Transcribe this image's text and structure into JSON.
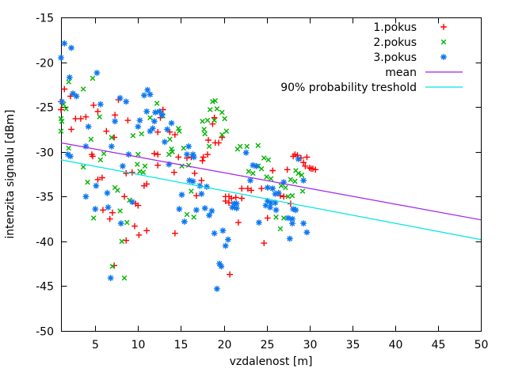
{
  "chart_data": {
    "type": "scatter",
    "title": "",
    "xlabel": "vzdalenost [m]",
    "ylabel": "intenzita signalu [dBm]",
    "xlim": [
      1,
      50
    ],
    "ylim": [
      -50,
      -15
    ],
    "xticks": [
      5,
      10,
      15,
      20,
      25,
      30,
      35,
      40,
      45,
      50
    ],
    "yticks": [
      -50,
      -45,
      -40,
      -35,
      -30,
      -25,
      -20,
      -15
    ],
    "grid": false,
    "background": "#ffffff",
    "axis_color": "#000000",
    "legend_position": "top-right-inside",
    "series": [
      {
        "name": "1.pokus",
        "type": "scatter",
        "marker": "plus",
        "color": "#ff0000",
        "points": [
          [
            1.4,
            -23.0
          ],
          [
            2.1,
            -23.8
          ],
          [
            1.0,
            -24.4
          ],
          [
            1.0,
            -25.3
          ],
          [
            2.2,
            -27.5
          ],
          [
            2.7,
            -26.3
          ],
          [
            3.3,
            -26.3
          ],
          [
            3.9,
            -26.1
          ],
          [
            4.8,
            -24.8
          ],
          [
            5.3,
            -25.5
          ],
          [
            7.7,
            -24.2
          ],
          [
            7.3,
            -25.9
          ],
          [
            8.8,
            -26.5
          ],
          [
            6.3,
            -27.7
          ],
          [
            7.2,
            -28.4
          ],
          [
            4.6,
            -30.3
          ],
          [
            4.7,
            -30.5
          ],
          [
            5.8,
            -32.9
          ],
          [
            5.3,
            -33.1
          ],
          [
            8.6,
            -32.4
          ],
          [
            9.3,
            -32.3
          ],
          [
            10.7,
            -33.8
          ],
          [
            11.0,
            -33.6
          ],
          [
            8.4,
            -35.0
          ],
          [
            9.7,
            -35.8
          ],
          [
            10.0,
            -36.0
          ],
          [
            5.9,
            -36.5
          ],
          [
            7.0,
            -36.8
          ],
          [
            6.7,
            -37.5
          ],
          [
            9.6,
            -38.3
          ],
          [
            11.0,
            -38.8
          ],
          [
            10.1,
            -39.3
          ],
          [
            8.6,
            -39.9
          ],
          [
            7.2,
            -42.7
          ],
          [
            12.9,
            -25.3
          ],
          [
            12.6,
            -26.2
          ],
          [
            12.3,
            -27.8
          ],
          [
            13.7,
            -27.8
          ],
          [
            14.3,
            -28.1
          ],
          [
            11.9,
            -30.2
          ],
          [
            12.3,
            -30.3
          ],
          [
            14.7,
            -30.6
          ],
          [
            12.3,
            -31.5
          ],
          [
            14.2,
            -32.3
          ],
          [
            17.4,
            -33.2
          ],
          [
            16.6,
            -32.4
          ],
          [
            15.7,
            -30.7
          ],
          [
            16.2,
            -30.6
          ],
          [
            17.5,
            -31.0
          ],
          [
            17.6,
            -30.6
          ],
          [
            18.1,
            -30.3
          ],
          [
            18.9,
            -26.2
          ],
          [
            18.7,
            -26.9
          ],
          [
            18.2,
            -28.7
          ],
          [
            19.0,
            -29.0
          ],
          [
            19.4,
            -29.0
          ],
          [
            19.8,
            -28.4
          ],
          [
            16.8,
            -34.9
          ],
          [
            20.2,
            -35.0
          ],
          [
            20.6,
            -35.0
          ],
          [
            20.9,
            -35.2
          ],
          [
            21.4,
            -35.1
          ],
          [
            20.2,
            -35.5
          ],
          [
            20.6,
            -35.7
          ],
          [
            21.7,
            -37.9
          ],
          [
            14.3,
            -39.1
          ],
          [
            20.7,
            -43.7
          ],
          [
            22.1,
            -34.1
          ],
          [
            22.8,
            -34.1
          ],
          [
            23.2,
            -34.3
          ],
          [
            24.4,
            -34.1
          ],
          [
            22.1,
            -35.2
          ],
          [
            25.7,
            -32.1
          ],
          [
            27.4,
            -32.0
          ],
          [
            26.6,
            -34.9
          ],
          [
            27.0,
            -35.0
          ],
          [
            27.8,
            -35.8
          ],
          [
            25.1,
            -37.4
          ],
          [
            24.7,
            -40.2
          ],
          [
            28.1,
            -30.5
          ],
          [
            28.6,
            -30.4
          ],
          [
            29.0,
            -30.7
          ],
          [
            28.3,
            -30.3
          ],
          [
            29.7,
            -30.6
          ],
          [
            29.3,
            -31.2
          ],
          [
            29.5,
            -31.6
          ],
          [
            30.0,
            -31.8
          ],
          [
            30.2,
            -31.9
          ],
          [
            30.4,
            -31.9
          ],
          [
            30.7,
            -32.0
          ]
        ]
      },
      {
        "name": "2.pokus",
        "type": "scatter",
        "marker": "cross",
        "color": "#00b400",
        "points": [
          [
            1.9,
            -22.2
          ],
          [
            4.7,
            -21.8
          ],
          [
            3.6,
            -23.0
          ],
          [
            1.3,
            -24.7
          ],
          [
            1.6,
            -25.2
          ],
          [
            1.0,
            -26.3
          ],
          [
            1.1,
            -26.6
          ],
          [
            5.5,
            -26.1
          ],
          [
            1.0,
            -27.7
          ],
          [
            6.9,
            -28.4
          ],
          [
            4.5,
            -28.6
          ],
          [
            9.4,
            -28.2
          ],
          [
            10.4,
            -28.0
          ],
          [
            1.9,
            -29.6
          ],
          [
            6.0,
            -30.2
          ],
          [
            10.0,
            -30.3
          ],
          [
            5.6,
            -30.9
          ],
          [
            3.6,
            -31.7
          ],
          [
            9.9,
            -31.4
          ],
          [
            10.8,
            -31.6
          ],
          [
            10.2,
            -32.2
          ],
          [
            10.6,
            -32.3
          ],
          [
            4.1,
            -33.4
          ],
          [
            7.3,
            -34.0
          ],
          [
            7.6,
            -34.3
          ],
          [
            9.0,
            -35.4
          ],
          [
            7.9,
            -36.6
          ],
          [
            4.8,
            -37.4
          ],
          [
            8.7,
            -37.9
          ],
          [
            8.1,
            -40.0
          ],
          [
            7.0,
            -42.8
          ],
          [
            8.4,
            -44.1
          ],
          [
            12.2,
            -24.6
          ],
          [
            11.4,
            -26.2
          ],
          [
            12.9,
            -26.0
          ],
          [
            14.7,
            -27.4
          ],
          [
            14.8,
            -27.7
          ],
          [
            13.7,
            -28.6
          ],
          [
            14.0,
            -30.0
          ],
          [
            13.6,
            -30.3
          ],
          [
            15.3,
            -29.6
          ],
          [
            13.9,
            -29.7
          ],
          [
            15.1,
            -31.6
          ],
          [
            15.9,
            -31.5
          ],
          [
            16.2,
            -34.4
          ],
          [
            15.7,
            -37.0
          ],
          [
            16.5,
            -37.3
          ],
          [
            18.7,
            -24.4
          ],
          [
            19.0,
            -24.3
          ],
          [
            18.4,
            -25.3
          ],
          [
            19.2,
            -25.2
          ],
          [
            19.8,
            -25.6
          ],
          [
            17.5,
            -26.6
          ],
          [
            18.1,
            -26.5
          ],
          [
            18.9,
            -26.5
          ],
          [
            20.1,
            -26.3
          ],
          [
            17.7,
            -27.5
          ],
          [
            17.8,
            -28.0
          ],
          [
            20.3,
            -27.7
          ],
          [
            19.8,
            -28.1
          ],
          [
            18.3,
            -29.4
          ],
          [
            21.9,
            -29.4
          ],
          [
            21.6,
            -29.7
          ],
          [
            22.7,
            -29.4
          ],
          [
            24.0,
            -29.3
          ],
          [
            24.7,
            -30.7
          ],
          [
            25.2,
            -30.9
          ],
          [
            24.0,
            -31.6
          ],
          [
            24.4,
            -31.9
          ],
          [
            22.9,
            -32.2
          ],
          [
            23.4,
            -32.4
          ],
          [
            25.0,
            -32.8
          ],
          [
            25.5,
            -33.0
          ],
          [
            26.7,
            -33.8
          ],
          [
            27.2,
            -34.0
          ],
          [
            27.8,
            -33.1
          ],
          [
            28.3,
            -33.3
          ],
          [
            28.7,
            -32.4
          ],
          [
            29.1,
            -32.6
          ],
          [
            28.4,
            -32.1
          ],
          [
            29.2,
            -34.4
          ],
          [
            27.5,
            -35.0
          ],
          [
            28.0,
            -34.9
          ],
          [
            26.1,
            -37.3
          ],
          [
            26.6,
            -38.6
          ],
          [
            27.0,
            -37.4
          ]
        ]
      },
      {
        "name": "3.pokus",
        "type": "scatter",
        "marker": "asterisk",
        "color": "#0d78f0",
        "points": [
          [
            1.4,
            -17.9
          ],
          [
            2.2,
            -18.4
          ],
          [
            1.0,
            -19.5
          ],
          [
            2.0,
            -21.7
          ],
          [
            5.2,
            -21.2
          ],
          [
            2.4,
            -23.5
          ],
          [
            2.8,
            -23.8
          ],
          [
            1.1,
            -24.4
          ],
          [
            7.9,
            -24.0
          ],
          [
            8.6,
            -24.4
          ],
          [
            10.7,
            -23.7
          ],
          [
            5.6,
            -24.7
          ],
          [
            4.2,
            -27.2
          ],
          [
            7.3,
            -26.6
          ],
          [
            10.2,
            -26.5
          ],
          [
            10.0,
            -27.2
          ],
          [
            3.9,
            -29.4
          ],
          [
            6.9,
            -29.4
          ],
          [
            1.8,
            -30.3
          ],
          [
            8.9,
            -30.3
          ],
          [
            2.1,
            -30.5
          ],
          [
            11.1,
            -23.1
          ],
          [
            11.4,
            -23.6
          ],
          [
            11.0,
            -25.5
          ],
          [
            12.0,
            -25.6
          ],
          [
            12.5,
            -25.5
          ],
          [
            12.8,
            -25.9
          ],
          [
            11.9,
            -26.6
          ],
          [
            11.7,
            -27.4
          ],
          [
            11.4,
            -27.7
          ],
          [
            13.9,
            -26.8
          ],
          [
            13.4,
            -27.5
          ],
          [
            13.1,
            -28.9
          ],
          [
            15.9,
            -29.4
          ],
          [
            15.7,
            -30.3
          ],
          [
            16.4,
            -30.3
          ],
          [
            16.5,
            -30.6
          ],
          [
            8.2,
            -31.6
          ],
          [
            5.1,
            -33.8
          ],
          [
            6.4,
            -34.6
          ],
          [
            3.9,
            -35.0
          ],
          [
            9.3,
            -35.6
          ],
          [
            5.0,
            -36.4
          ],
          [
            6.5,
            -36.2
          ],
          [
            8.0,
            -38.0
          ],
          [
            6.8,
            -44.1
          ],
          [
            13.6,
            -31.4
          ],
          [
            16.0,
            -33.2
          ],
          [
            16.4,
            -33.3
          ],
          [
            17.2,
            -33.8
          ],
          [
            18.0,
            -33.9
          ],
          [
            15.1,
            -34.8
          ],
          [
            17.4,
            -34.7
          ],
          [
            14.8,
            -36.4
          ],
          [
            16.8,
            -36.5
          ],
          [
            17.8,
            -36.3
          ],
          [
            18.6,
            -36.6
          ],
          [
            18.3,
            -37.1
          ],
          [
            15.4,
            -37.8
          ],
          [
            18.9,
            -39.1
          ],
          [
            19.9,
            -38.8
          ],
          [
            20.5,
            -39.8
          ],
          [
            20.2,
            -40.5
          ],
          [
            19.5,
            -42.5
          ],
          [
            19.7,
            -42.8
          ],
          [
            19.2,
            -45.3
          ],
          [
            21.2,
            -35.8
          ],
          [
            21.5,
            -35.8
          ],
          [
            21.0,
            -36.2
          ],
          [
            21.5,
            -36.3
          ],
          [
            22.6,
            -30.1
          ],
          [
            23.4,
            -31.5
          ],
          [
            23.8,
            -31.6
          ],
          [
            23.1,
            -33.2
          ],
          [
            25.1,
            -34.0
          ],
          [
            25.7,
            -34.1
          ],
          [
            26.0,
            -34.7
          ],
          [
            26.4,
            -34.6
          ],
          [
            27.0,
            -33.4
          ],
          [
            28.7,
            -30.8
          ],
          [
            29.3,
            -33.2
          ],
          [
            25.1,
            -35.5
          ],
          [
            25.5,
            -35.7
          ],
          [
            26.0,
            -35.7
          ],
          [
            24.9,
            -36.0
          ],
          [
            25.4,
            -36.2
          ],
          [
            26.1,
            -36.5
          ],
          [
            28.1,
            -36.4
          ],
          [
            28.4,
            -36.5
          ],
          [
            27.5,
            -37.4
          ],
          [
            28.0,
            -37.5
          ],
          [
            24.1,
            -37.9
          ],
          [
            28.0,
            -38.0
          ],
          [
            29.3,
            -38.0
          ],
          [
            29.7,
            -39.0
          ],
          [
            27.7,
            -39.7
          ]
        ]
      },
      {
        "name": "mean",
        "type": "line",
        "color": "#a020f0",
        "points": [
          [
            1,
            -29.0
          ],
          [
            50,
            -37.6
          ]
        ]
      },
      {
        "name": "90% probability treshold",
        "type": "line",
        "color": "#00e5e5",
        "points": [
          [
            1,
            -30.9
          ],
          [
            50,
            -39.8
          ]
        ]
      }
    ]
  }
}
